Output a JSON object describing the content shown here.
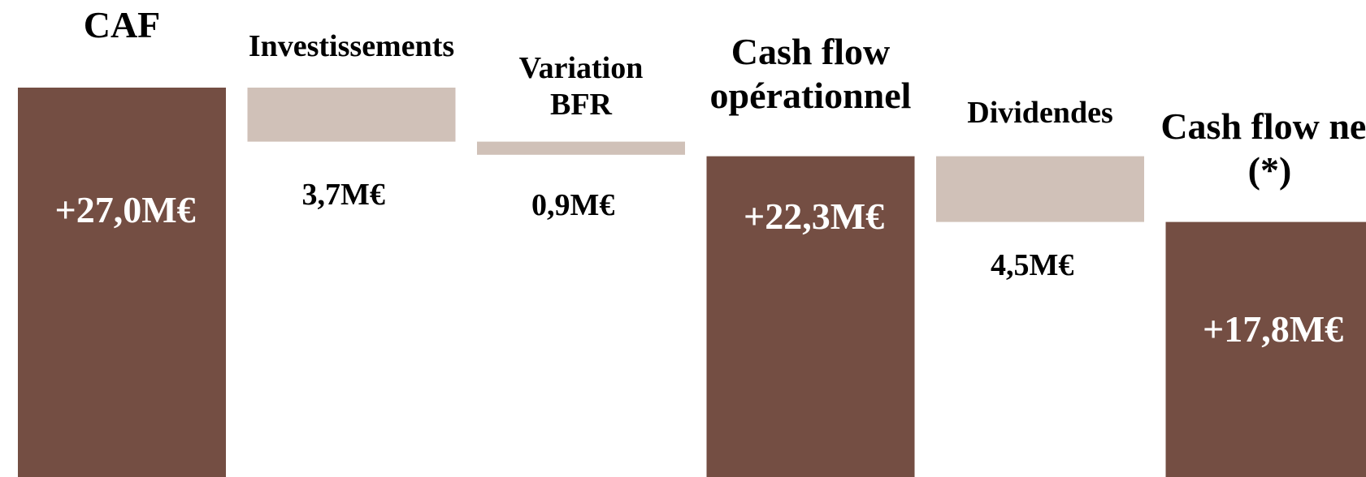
{
  "chart_data": {
    "type": "waterfall",
    "categories": [
      "CAF",
      "Investissements",
      "Variation BFR",
      "Cash flow opérationnel",
      "Dividendes",
      "Cash flow net (*)"
    ],
    "values": [
      27.0,
      -3.7,
      -0.9,
      22.3,
      -4.5,
      17.8
    ],
    "value_labels": [
      "+27,0M€",
      "3,7M€",
      "0,9M€",
      "+22,3M€",
      "4,5M€",
      "+17,8M€"
    ],
    "measure": [
      "absolute",
      "relative",
      "relative",
      "absolute",
      "relative",
      "absolute"
    ],
    "colors": {
      "absolute": "#744e43",
      "relative": "#d0c1b8"
    },
    "ylim": [
      0,
      33
    ]
  }
}
